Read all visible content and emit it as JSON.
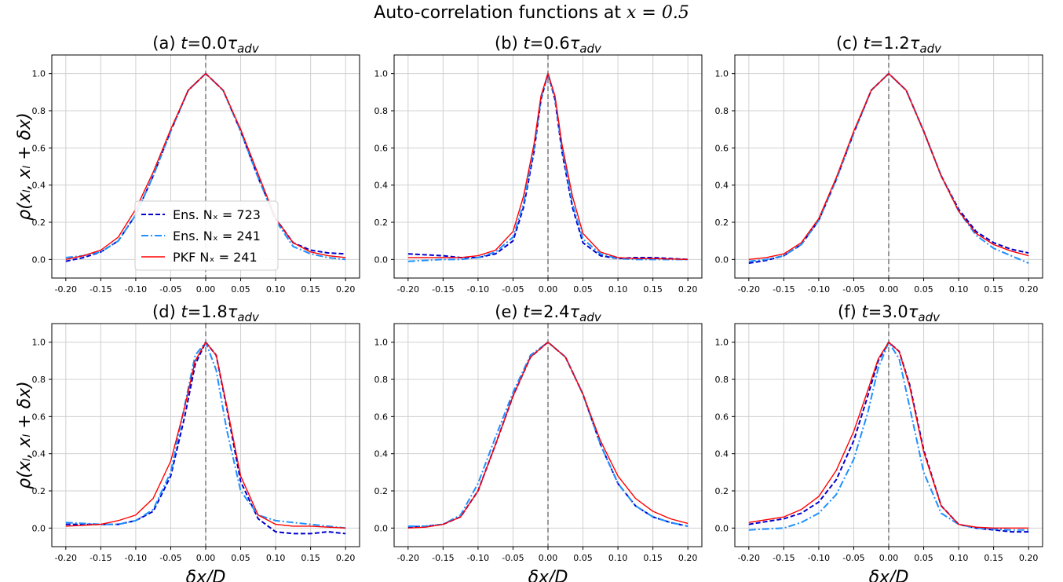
{
  "figure": {
    "suptitle_prefix": "Auto-correlation functions at ",
    "suptitle_math": "x = 0.5",
    "ylabel": "ρ(xₗ, xₗ + δx)",
    "xlabel": "δx/D"
  },
  "legend": {
    "entries": [
      {
        "label": "Ens. Nₓ = 723",
        "color": "#0000cc",
        "style": "dashed"
      },
      {
        "label": "Ens. Nₓ = 241",
        "color": "#1e90ff",
        "style": "dashdot"
      },
      {
        "label": "PKF Nₓ = 241",
        "color": "#ff0000",
        "style": "solid"
      }
    ]
  },
  "chart_data": [
    {
      "type": "line",
      "title": "(a) t=0.0τ_adv",
      "xlim": [
        -0.22,
        0.22
      ],
      "ylim": [
        -0.1,
        1.1
      ],
      "xticks": [
        -0.2,
        -0.15,
        -0.1,
        -0.05,
        0.0,
        0.05,
        0.1,
        0.15,
        0.2
      ],
      "yticks": [
        0.0,
        0.2,
        0.4,
        0.6,
        0.8,
        1.0
      ],
      "x": [
        -0.2,
        -0.175,
        -0.15,
        -0.125,
        -0.1,
        -0.075,
        -0.05,
        -0.025,
        0.0,
        0.025,
        0.05,
        0.075,
        0.1,
        0.125,
        0.15,
        0.175,
        0.2
      ],
      "series": [
        {
          "name": "Ens. Nₓ = 723",
          "values": [
            -0.01,
            0.01,
            0.04,
            0.1,
            0.24,
            0.45,
            0.69,
            0.91,
            1.0,
            0.91,
            0.69,
            0.44,
            0.22,
            0.09,
            0.05,
            0.035,
            0.03
          ]
        },
        {
          "name": "Ens. Nₓ = 241",
          "values": [
            0.01,
            0.02,
            0.04,
            0.1,
            0.24,
            0.45,
            0.69,
            0.91,
            1.0,
            0.91,
            0.69,
            0.44,
            0.21,
            0.07,
            0.03,
            0.01,
            0.0
          ]
        },
        {
          "name": "PKF Nₓ = 241",
          "values": [
            0.0,
            0.02,
            0.05,
            0.12,
            0.27,
            0.47,
            0.7,
            0.91,
            1.0,
            0.91,
            0.7,
            0.46,
            0.22,
            0.09,
            0.04,
            0.02,
            0.01
          ]
        }
      ]
    },
    {
      "type": "line",
      "title": "(b) t=0.6τ_adv",
      "xlim": [
        -0.22,
        0.22
      ],
      "ylim": [
        -0.1,
        1.1
      ],
      "xticks": [
        -0.2,
        -0.15,
        -0.1,
        -0.05,
        0.0,
        0.05,
        0.1,
        0.15,
        0.2
      ],
      "yticks": [
        0.0,
        0.2,
        0.4,
        0.6,
        0.8,
        1.0
      ],
      "x": [
        -0.2,
        -0.15,
        -0.125,
        -0.1,
        -0.075,
        -0.05,
        -0.035,
        -0.02,
        -0.01,
        0.0,
        0.01,
        0.02,
        0.035,
        0.05,
        0.075,
        0.1,
        0.125,
        0.15,
        0.2
      ],
      "series": [
        {
          "name": "Ens. Nₓ = 723",
          "values": [
            0.03,
            0.02,
            0.01,
            0.01,
            0.03,
            0.1,
            0.28,
            0.58,
            0.86,
            1.0,
            0.86,
            0.58,
            0.28,
            0.09,
            0.02,
            0.005,
            0.01,
            0.01,
            0.0
          ]
        },
        {
          "name": "Ens. Nₓ = 241",
          "values": [
            -0.01,
            0.0,
            0.0,
            0.01,
            0.04,
            0.12,
            0.3,
            0.6,
            0.87,
            1.0,
            0.87,
            0.6,
            0.3,
            0.11,
            0.03,
            0.005,
            0.0,
            0.0,
            0.0
          ]
        },
        {
          "name": "PKF Nₓ = 241",
          "values": [
            0.01,
            0.01,
            0.01,
            0.02,
            0.05,
            0.15,
            0.34,
            0.62,
            0.88,
            1.0,
            0.88,
            0.62,
            0.34,
            0.14,
            0.04,
            0.01,
            0.005,
            0.005,
            0.0
          ]
        }
      ]
    },
    {
      "type": "line",
      "title": "(c) t=1.2τ_adv",
      "xlim": [
        -0.22,
        0.22
      ],
      "ylim": [
        -0.1,
        1.1
      ],
      "xticks": [
        -0.2,
        -0.15,
        -0.1,
        -0.05,
        0.0,
        0.05,
        0.1,
        0.15,
        0.2
      ],
      "yticks": [
        0.0,
        0.2,
        0.4,
        0.6,
        0.8,
        1.0
      ],
      "x": [
        -0.2,
        -0.175,
        -0.15,
        -0.125,
        -0.1,
        -0.075,
        -0.05,
        -0.025,
        0.0,
        0.025,
        0.05,
        0.075,
        0.1,
        0.125,
        0.15,
        0.175,
        0.2
      ],
      "series": [
        {
          "name": "Ens. Nₓ = 723",
          "values": [
            -0.02,
            -0.005,
            0.02,
            0.08,
            0.21,
            0.43,
            0.68,
            0.91,
            1.0,
            0.91,
            0.69,
            0.45,
            0.27,
            0.15,
            0.09,
            0.055,
            0.035
          ]
        },
        {
          "name": "Ens. Nₓ = 241",
          "values": [
            -0.01,
            0.0,
            0.02,
            0.08,
            0.21,
            0.43,
            0.68,
            0.91,
            1.0,
            0.91,
            0.69,
            0.45,
            0.26,
            0.13,
            0.06,
            0.02,
            -0.02
          ]
        },
        {
          "name": "PKF Nₓ = 241",
          "values": [
            0.0,
            0.01,
            0.03,
            0.09,
            0.22,
            0.44,
            0.69,
            0.91,
            1.0,
            0.91,
            0.69,
            0.45,
            0.26,
            0.14,
            0.08,
            0.045,
            0.02
          ]
        }
      ]
    },
    {
      "type": "line",
      "title": "(d) t=1.8τ_adv",
      "xlim": [
        -0.22,
        0.22
      ],
      "ylim": [
        -0.1,
        1.1
      ],
      "xticks": [
        -0.2,
        -0.15,
        -0.1,
        -0.05,
        0.0,
        0.05,
        0.1,
        0.15,
        0.2
      ],
      "yticks": [
        0.0,
        0.2,
        0.4,
        0.6,
        0.8,
        1.0
      ],
      "x": [
        -0.2,
        -0.15,
        -0.125,
        -0.1,
        -0.075,
        -0.05,
        -0.03,
        -0.015,
        0.0,
        0.015,
        0.03,
        0.05,
        0.075,
        0.1,
        0.125,
        0.15,
        0.175,
        0.2
      ],
      "series": [
        {
          "name": "Ens. Nₓ = 723",
          "values": [
            0.02,
            0.02,
            0.02,
            0.04,
            0.09,
            0.28,
            0.6,
            0.88,
            1.0,
            0.93,
            0.65,
            0.25,
            0.05,
            -0.02,
            -0.03,
            -0.03,
            -0.02,
            -0.03
          ]
        },
        {
          "name": "Ens. Nₓ = 241",
          "values": [
            0.03,
            0.02,
            0.02,
            0.04,
            0.1,
            0.3,
            0.66,
            0.93,
            1.0,
            0.85,
            0.53,
            0.2,
            0.07,
            0.04,
            0.03,
            0.02,
            0.01,
            0.0
          ]
        },
        {
          "name": "PKF Nₓ = 241",
          "values": [
            0.01,
            0.02,
            0.04,
            0.07,
            0.16,
            0.36,
            0.65,
            0.9,
            1.0,
            0.93,
            0.66,
            0.28,
            0.07,
            0.02,
            0.01,
            0.01,
            0.005,
            0.0
          ]
        }
      ]
    },
    {
      "type": "line",
      "title": "(e) t=2.4τ_adv",
      "xlim": [
        -0.22,
        0.22
      ],
      "ylim": [
        -0.1,
        1.1
      ],
      "xticks": [
        -0.2,
        -0.15,
        -0.1,
        -0.05,
        0.0,
        0.05,
        0.1,
        0.15,
        0.2
      ],
      "yticks": [
        0.0,
        0.2,
        0.4,
        0.6,
        0.8,
        1.0
      ],
      "x": [
        -0.2,
        -0.175,
        -0.15,
        -0.125,
        -0.1,
        -0.075,
        -0.05,
        -0.025,
        0.0,
        0.025,
        0.05,
        0.075,
        0.1,
        0.125,
        0.15,
        0.175,
        0.2
      ],
      "series": [
        {
          "name": "Ens. Nₓ = 723",
          "values": [
            0.005,
            0.01,
            0.02,
            0.06,
            0.2,
            0.45,
            0.71,
            0.92,
            1.0,
            0.92,
            0.72,
            0.45,
            0.24,
            0.12,
            0.06,
            0.03,
            0.01
          ]
        },
        {
          "name": "Ens. Nₓ = 241",
          "values": [
            0.01,
            0.01,
            0.02,
            0.07,
            0.24,
            0.49,
            0.73,
            0.93,
            1.0,
            0.92,
            0.72,
            0.45,
            0.24,
            0.12,
            0.06,
            0.03,
            0.01
          ]
        },
        {
          "name": "PKF Nₓ = 241",
          "values": [
            0.0,
            0.005,
            0.02,
            0.06,
            0.2,
            0.45,
            0.71,
            0.92,
            1.0,
            0.92,
            0.72,
            0.47,
            0.28,
            0.16,
            0.09,
            0.05,
            0.025
          ]
        }
      ]
    },
    {
      "type": "line",
      "title": "(f) t=3.0τ_adv",
      "xlim": [
        -0.22,
        0.22
      ],
      "ylim": [
        -0.1,
        1.1
      ],
      "xticks": [
        -0.2,
        -0.15,
        -0.1,
        -0.05,
        0.0,
        0.05,
        0.1,
        0.15,
        0.2
      ],
      "yticks": [
        0.0,
        0.2,
        0.4,
        0.6,
        0.8,
        1.0
      ],
      "x": [
        -0.2,
        -0.15,
        -0.125,
        -0.1,
        -0.075,
        -0.05,
        -0.03,
        -0.015,
        0.0,
        0.015,
        0.03,
        0.05,
        0.075,
        0.1,
        0.125,
        0.15,
        0.175,
        0.2
      ],
      "series": [
        {
          "name": "Ens. Nₓ = 723",
          "values": [
            0.02,
            0.05,
            0.08,
            0.14,
            0.26,
            0.47,
            0.71,
            0.9,
            1.0,
            0.95,
            0.77,
            0.42,
            0.12,
            0.02,
            0.0,
            -0.01,
            -0.02,
            -0.02
          ]
        },
        {
          "name": "Ens. Nₓ = 241",
          "values": [
            -0.01,
            0.0,
            0.03,
            0.08,
            0.18,
            0.37,
            0.62,
            0.86,
            1.0,
            0.91,
            0.65,
            0.3,
            0.08,
            0.02,
            0.0,
            -0.005,
            -0.01,
            -0.01
          ]
        },
        {
          "name": "PKF Nₓ = 241",
          "values": [
            0.03,
            0.06,
            0.1,
            0.17,
            0.31,
            0.52,
            0.74,
            0.91,
            1.0,
            0.95,
            0.76,
            0.41,
            0.12,
            0.02,
            0.005,
            0.0,
            0.0,
            0.0
          ]
        }
      ]
    }
  ]
}
